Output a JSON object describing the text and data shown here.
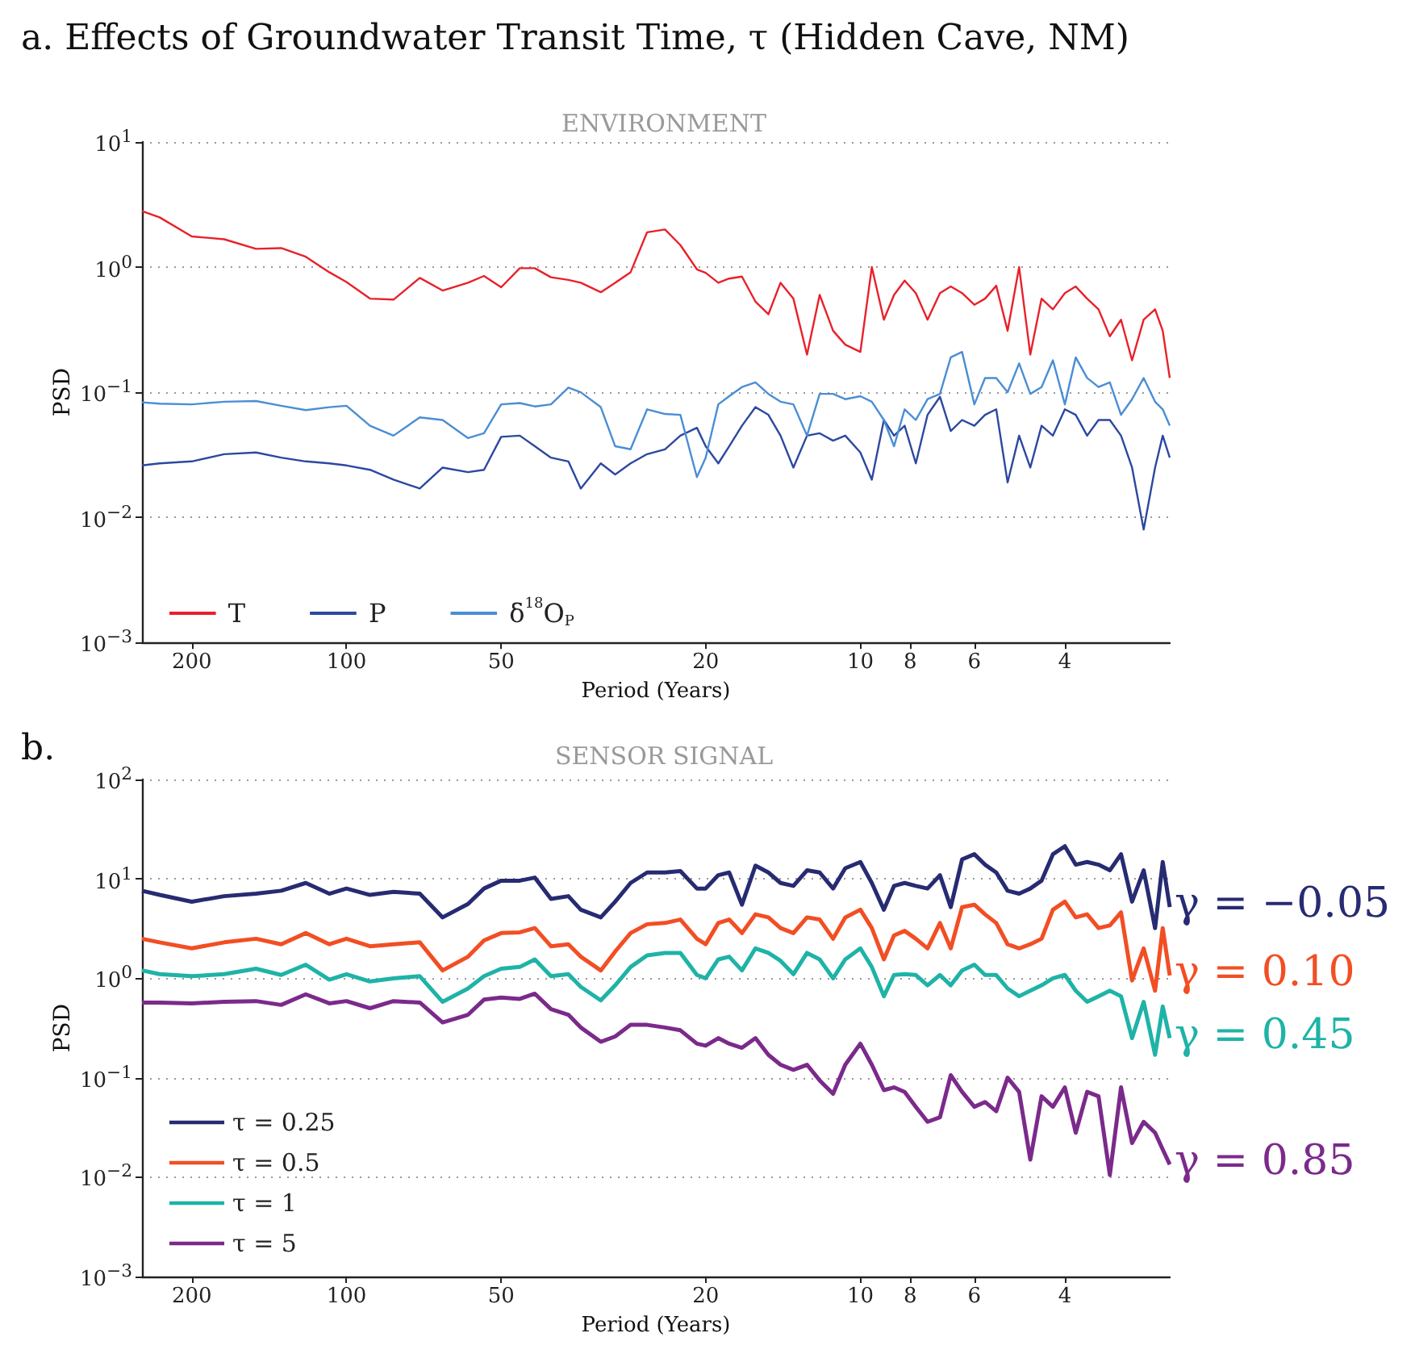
{
  "chart_data": [
    {
      "type": "line",
      "title": "a. Effects of Groundwater Transit Time, τ (Hidden Cave, NM)",
      "subtitle": "ENVIRONMENT",
      "xlabel": "Period (Years)",
      "ylabel": "PSD",
      "x": [
        250,
        231,
        200,
        173,
        150,
        134,
        120,
        108,
        100,
        90,
        81,
        72,
        65,
        58,
        54,
        50,
        46,
        43,
        40,
        37,
        35,
        32,
        30,
        28,
        26,
        24,
        22.4,
        20.8,
        20,
        18.9,
        18,
        17,
        16,
        15.1,
        14.3,
        13.5,
        12.7,
        12,
        11.3,
        10.7,
        10,
        9.5,
        9,
        8.6,
        8.2,
        7.8,
        7.4,
        7,
        6.67,
        6.34,
        6,
        5.72,
        5.44,
        5.17,
        4.91,
        4.67,
        4.44,
        4.22,
        4,
        3.81,
        3.62,
        3.44,
        3.27,
        3.11,
        2.96,
        2.81,
        2.67,
        2.58,
        2.5
      ],
      "series": [
        {
          "name": "T",
          "color": "#e8212b",
          "values": [
            2.8,
            2.5,
            1.76,
            1.67,
            1.4,
            1.42,
            1.21,
            0.91,
            0.76,
            0.56,
            0.55,
            0.82,
            0.65,
            0.75,
            0.85,
            0.69,
            0.98,
            0.98,
            0.83,
            0.79,
            0.75,
            0.63,
            0.75,
            0.91,
            1.9,
            2.0,
            1.5,
            0.96,
            0.9,
            0.75,
            0.81,
            0.84,
            0.53,
            0.42,
            0.75,
            0.56,
            0.2,
            0.6,
            0.31,
            0.24,
            0.21,
            1.0,
            0.38,
            0.6,
            0.78,
            0.62,
            0.38,
            0.62,
            0.7,
            0.62,
            0.5,
            0.56,
            0.71,
            0.31,
            1.0,
            0.2,
            0.56,
            0.46,
            0.62,
            0.7,
            0.56,
            0.46,
            0.28,
            0.38,
            0.18,
            0.38,
            0.46,
            0.31,
            0.13
          ]
        },
        {
          "name": "P",
          "color": "#2c48a0",
          "values": [
            0.026,
            0.027,
            0.028,
            0.032,
            0.033,
            0.03,
            0.028,
            0.027,
            0.026,
            0.024,
            0.02,
            0.017,
            0.025,
            0.023,
            0.024,
            0.044,
            0.045,
            0.037,
            0.03,
            0.028,
            0.017,
            0.027,
            0.022,
            0.027,
            0.032,
            0.035,
            0.045,
            0.052,
            0.037,
            0.027,
            0.037,
            0.054,
            0.076,
            0.066,
            0.045,
            0.025,
            0.045,
            0.047,
            0.041,
            0.045,
            0.033,
            0.02,
            0.06,
            0.045,
            0.054,
            0.027,
            0.066,
            0.092,
            0.049,
            0.06,
            0.054,
            0.066,
            0.073,
            0.019,
            0.045,
            0.025,
            0.054,
            0.045,
            0.073,
            0.066,
            0.045,
            0.06,
            0.06,
            0.045,
            0.025,
            0.008,
            0.025,
            0.045,
            0.03
          ]
        },
        {
          "name": "δ$^{18}$O$_{P}$",
          "color": "#4a8ed4",
          "values": [
            0.083,
            0.081,
            0.08,
            0.084,
            0.085,
            0.078,
            0.072,
            0.076,
            0.078,
            0.054,
            0.045,
            0.063,
            0.06,
            0.043,
            0.047,
            0.08,
            0.082,
            0.077,
            0.08,
            0.109,
            0.1,
            0.076,
            0.037,
            0.035,
            0.073,
            0.067,
            0.066,
            0.021,
            0.03,
            0.08,
            0.093,
            0.11,
            0.12,
            0.097,
            0.084,
            0.08,
            0.045,
            0.097,
            0.097,
            0.088,
            0.093,
            0.084,
            0.06,
            0.037,
            0.073,
            0.06,
            0.088,
            0.097,
            0.19,
            0.21,
            0.08,
            0.13,
            0.13,
            0.1,
            0.17,
            0.097,
            0.11,
            0.18,
            0.08,
            0.19,
            0.13,
            0.11,
            0.12,
            0.066,
            0.088,
            0.13,
            0.084,
            0.073,
            0.054
          ]
        }
      ],
      "xlim": [
        250,
        2.5
      ],
      "xticks": [
        200,
        100,
        50,
        20,
        10,
        8,
        6,
        4
      ],
      "ylim": [
        0.001,
        10
      ],
      "yticks": [
        {
          "value": 0.001,
          "label": "10$^{−3}$"
        },
        {
          "value": 0.01,
          "label": "10$^{−2}$"
        },
        {
          "value": 0.1,
          "label": "10$^{−1}$"
        },
        {
          "value": 1,
          "label": "10$^{0}$"
        },
        {
          "value": 10,
          "label": "10$^{1}$"
        }
      ],
      "log": "xy",
      "grid": "y",
      "legend": "bottom left"
    },
    {
      "type": "line",
      "title": "b.",
      "subtitle": "SENSOR SIGNAL",
      "xlabel": "Period (Years)",
      "ylabel": "PSD",
      "x": [
        250,
        231,
        200,
        173,
        150,
        134,
        120,
        108,
        100,
        90,
        81,
        72,
        65,
        58,
        54,
        50,
        46,
        43,
        40,
        37,
        35,
        32,
        30,
        28,
        26,
        24,
        22.4,
        20.8,
        20,
        18.9,
        18,
        17,
        16,
        15.1,
        14.3,
        13.5,
        12.7,
        12,
        11.3,
        10.7,
        10,
        9.5,
        9,
        8.6,
        8.2,
        7.8,
        7.4,
        7,
        6.67,
        6.34,
        6,
        5.72,
        5.44,
        5.17,
        4.91,
        4.67,
        4.44,
        4.22,
        4,
        3.81,
        3.62,
        3.44,
        3.27,
        3.11,
        2.96,
        2.81,
        2.67,
        2.58,
        2.5
      ],
      "series": [
        {
          "name": "τ = 0.25",
          "color": "#272b72",
          "values": [
            7.6,
            6.9,
            5.9,
            6.7,
            7.1,
            7.6,
            9.1,
            7.1,
            8.0,
            6.9,
            7.4,
            7.1,
            4.1,
            5.6,
            8.0,
            9.6,
            9.6,
            10.3,
            6.3,
            6.7,
            4.9,
            4.1,
            5.9,
            9.1,
            11.6,
            11.6,
            12,
            8.0,
            8.0,
            10.9,
            11.6,
            5.5,
            13.6,
            11.6,
            9.1,
            8.5,
            12.2,
            11.6,
            8.0,
            12.8,
            14.8,
            9.1,
            4.9,
            8.5,
            9.1,
            8.5,
            8.0,
            10.9,
            5.2,
            15.7,
            17.7,
            13.9,
            11.6,
            7.6,
            7.1,
            8.0,
            9.6,
            17.7,
            21.3,
            13.9,
            14.8,
            13.9,
            12.2,
            17.7,
            5.9,
            12.2,
            3.2,
            14.8,
            5.2
          ]
        },
        {
          "name": "τ = 0.5",
          "color": "#f24e24",
          "values": [
            2.5,
            2.3,
            2.0,
            2.3,
            2.5,
            2.2,
            2.85,
            2.2,
            2.5,
            2.1,
            2.2,
            2.3,
            1.2,
            1.65,
            2.4,
            2.85,
            2.9,
            3.2,
            2.1,
            2.2,
            1.65,
            1.2,
            1.86,
            2.85,
            3.5,
            3.6,
            3.9,
            2.5,
            2.2,
            3.6,
            3.9,
            2.85,
            4.4,
            4.1,
            3.2,
            2.85,
            4.1,
            3.9,
            2.5,
            4.1,
            4.9,
            3.2,
            1.55,
            2.7,
            3.0,
            2.5,
            2.0,
            3.6,
            2.0,
            5.2,
            5.5,
            4.4,
            3.6,
            2.2,
            2.0,
            2.2,
            2.5,
            4.9,
            5.9,
            4.1,
            4.4,
            3.2,
            3.4,
            4.6,
            0.95,
            2.0,
            0.75,
            3.2,
            1.07
          ]
        },
        {
          "name": "τ = 1",
          "color": "#1fb3a7",
          "values": [
            1.2,
            1.1,
            1.05,
            1.1,
            1.25,
            1.08,
            1.37,
            0.97,
            1.1,
            0.93,
            1.0,
            1.05,
            0.58,
            0.79,
            1.05,
            1.25,
            1.3,
            1.55,
            1.05,
            1.1,
            0.82,
            0.6,
            0.85,
            1.3,
            1.7,
            1.8,
            1.8,
            1.08,
            1.0,
            1.55,
            1.65,
            1.2,
            2.0,
            1.8,
            1.5,
            1.1,
            1.8,
            1.55,
            1.0,
            1.55,
            2.0,
            1.3,
            0.66,
            1.08,
            1.1,
            1.08,
            0.85,
            1.08,
            0.85,
            1.2,
            1.37,
            1.08,
            1.08,
            0.79,
            0.66,
            0.75,
            0.85,
            1.0,
            1.08,
            0.75,
            0.58,
            0.66,
            0.75,
            0.66,
            0.25,
            0.58,
            0.17,
            0.52,
            0.25
          ]
        },
        {
          "name": "τ = 5",
          "color": "#7b2a8b",
          "values": [
            0.57,
            0.57,
            0.56,
            0.58,
            0.59,
            0.54,
            0.69,
            0.56,
            0.59,
            0.5,
            0.59,
            0.57,
            0.36,
            0.43,
            0.61,
            0.64,
            0.62,
            0.7,
            0.49,
            0.43,
            0.32,
            0.23,
            0.26,
            0.34,
            0.34,
            0.32,
            0.3,
            0.22,
            0.21,
            0.25,
            0.22,
            0.2,
            0.25,
            0.17,
            0.135,
            0.12,
            0.135,
            0.094,
            0.069,
            0.135,
            0.22,
            0.135,
            0.075,
            0.08,
            0.072,
            0.051,
            0.036,
            0.04,
            0.106,
            0.072,
            0.051,
            0.057,
            0.046,
            0.1,
            0.072,
            0.015,
            0.065,
            0.051,
            0.08,
            0.028,
            0.072,
            0.065,
            0.0105,
            0.08,
            0.022,
            0.036,
            0.028,
            0.019,
            0.0134
          ]
        }
      ],
      "xlim": [
        250,
        2.5
      ],
      "xticks": [
        200,
        100,
        50,
        20,
        10,
        8,
        6,
        4
      ],
      "ylim": [
        0.001,
        100
      ],
      "yticks": [
        {
          "value": 0.001,
          "label": "10$^{−3}$"
        },
        {
          "value": 0.01,
          "label": "10$^{−2}$"
        },
        {
          "value": 0.1,
          "label": "10$^{−1}$"
        },
        {
          "value": 1,
          "label": "10$^{0}$"
        },
        {
          "value": 10,
          "label": "10$^{1}$"
        },
        {
          "value": 100,
          "label": "10$^{2}$"
        }
      ],
      "log": "xy",
      "grid": "y",
      "legend": "bottom left",
      "annotations": [
        "γ = −0.05",
        "γ = 0.10",
        "γ = 0.45",
        "γ = 0.85"
      ]
    }
  ]
}
